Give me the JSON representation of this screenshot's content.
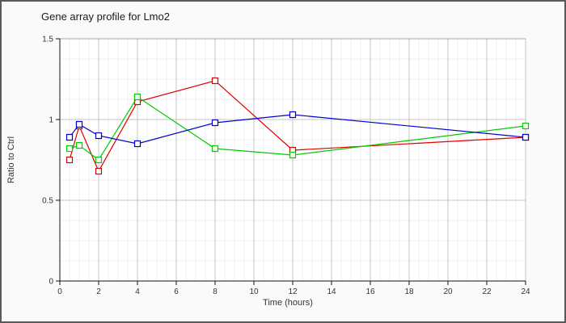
{
  "window": {
    "background": "#fafafa",
    "border_color": "#5a5a5a"
  },
  "chart_data": {
    "type": "line",
    "title": "Gene array profile for Lmo2",
    "xlabel": "Time (hours)",
    "ylabel": "Ratio to Ctrl",
    "xlim": [
      0,
      24
    ],
    "ylim": [
      0,
      1.5
    ],
    "x_major_ticks": [
      0,
      2,
      4,
      6,
      8,
      10,
      12,
      14,
      16,
      18,
      20,
      22,
      24
    ],
    "x_tick_labels": [
      "0",
      "2",
      "4",
      "6",
      "8",
      "10",
      "12",
      "14",
      "16",
      "18",
      "20",
      "22",
      "24"
    ],
    "x_minor_step": 0.5,
    "y_major_ticks": [
      0,
      0.5,
      1,
      1.5
    ],
    "y_tick_labels": [
      "0",
      "0.5",
      "1",
      "1.5"
    ],
    "y_minor_step": 0.125,
    "grid": true,
    "legend_position": "none",
    "marker": "open-square",
    "x": [
      0.5,
      1,
      2,
      4,
      8,
      12,
      24
    ],
    "series": [
      {
        "name": "series-red",
        "color": "#e00000",
        "values": [
          0.75,
          0.96,
          0.68,
          1.11,
          1.24,
          0.81,
          0.89
        ]
      },
      {
        "name": "series-green",
        "color": "#00cc00",
        "values": [
          0.82,
          0.84,
          0.75,
          1.14,
          0.82,
          0.78,
          0.96
        ]
      },
      {
        "name": "series-blue",
        "color": "#0000cc",
        "values": [
          0.89,
          0.97,
          0.9,
          0.85,
          0.98,
          1.03,
          0.89
        ]
      }
    ],
    "colors": {
      "grid_minor": "#efefef",
      "grid_major": "#c4c4c4",
      "frame_top": "#a8a8a8",
      "axis": "#111111",
      "plot_background": "#ffffff"
    }
  }
}
